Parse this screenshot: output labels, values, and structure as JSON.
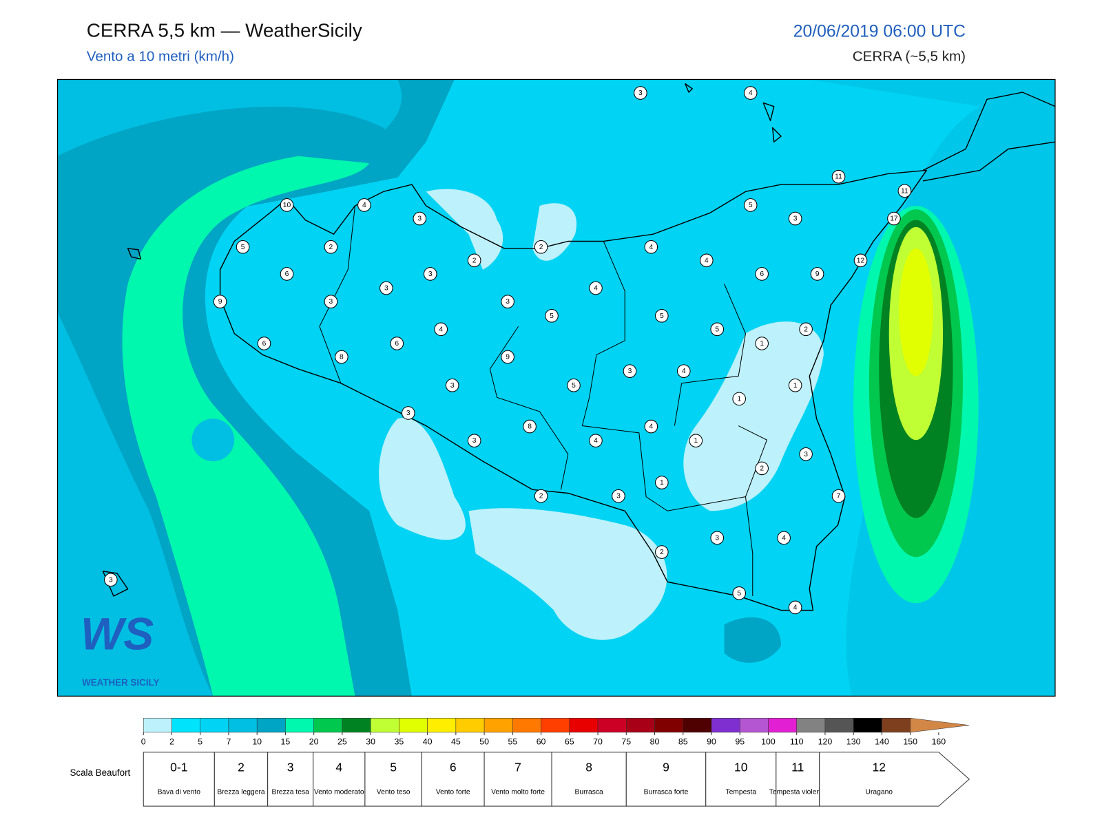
{
  "header": {
    "title": "CERRA 5,5 km — WeatherSicily",
    "subtitle": "Vento a 10 metri (km/h)",
    "date": "20/06/2019 06:00 UTC",
    "model": "CERRA (~5,5 km)"
  },
  "logo": {
    "mark": "WS",
    "name": "WEATHER SICILY"
  },
  "stations": [
    3,
    4,
    11,
    11,
    17,
    12,
    10,
    4,
    3,
    5,
    2,
    2,
    2,
    4,
    5,
    3,
    4,
    6,
    9,
    6,
    3,
    9,
    3,
    3,
    3,
    4,
    5,
    5,
    4,
    5,
    2,
    1,
    6,
    6,
    8,
    9,
    3,
    4,
    3,
    5,
    1,
    1,
    3,
    8,
    4,
    3,
    4,
    1,
    3,
    2,
    1,
    2,
    3,
    7,
    3,
    4,
    2,
    3,
    5,
    4
  ],
  "colorbar": {
    "ticks": [
      0,
      2,
      5,
      7,
      10,
      15,
      20,
      25,
      30,
      35,
      40,
      45,
      50,
      55,
      60,
      65,
      70,
      75,
      80,
      85,
      90,
      95,
      100,
      110,
      120,
      130,
      140,
      150,
      160
    ],
    "colors": [
      "#bdf1fc",
      "#00e3fd",
      "#00d3f3",
      "#00bfe2",
      "#00a4c4",
      "#00f7ae",
      "#00c84e",
      "#008222",
      "#bfff33",
      "#e1ff00",
      "#ffee00",
      "#ffcc00",
      "#ffa200",
      "#ff7800",
      "#ff3f00",
      "#e80000",
      "#cc0024",
      "#a80016",
      "#800000",
      "#4f0000",
      "#7f2fd0",
      "#b455d2",
      "#e21fd3",
      "#828282",
      "#555555",
      "#000000",
      "#7e3f1f",
      "#d38746"
    ]
  },
  "beaufort": {
    "label": "Scala Beaufort",
    "classes": [
      {
        "force": "0-1",
        "name": "Bava di vento"
      },
      {
        "force": "2",
        "name": "Brezza leggera"
      },
      {
        "force": "3",
        "name": "Brezza tesa"
      },
      {
        "force": "4",
        "name": "Vento moderato"
      },
      {
        "force": "5",
        "name": "Vento teso"
      },
      {
        "force": "6",
        "name": "Vento forte"
      },
      {
        "force": "7",
        "name": "Vento molto forte"
      },
      {
        "force": "8",
        "name": "Burrasca"
      },
      {
        "force": "9",
        "name": "Burrasca forte"
      },
      {
        "force": "10",
        "name": "Tempesta"
      },
      {
        "force": "11",
        "name": "Tempesta violenta"
      },
      {
        "force": "12",
        "name": "Uragano"
      }
    ]
  }
}
